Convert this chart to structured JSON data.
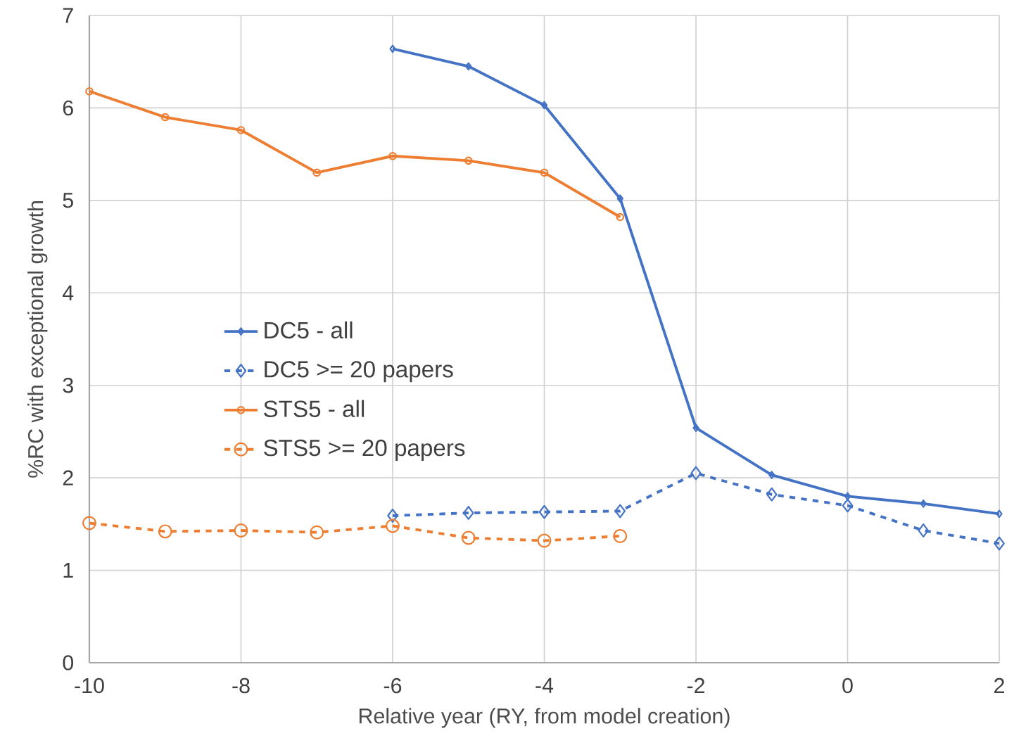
{
  "chart_data": {
    "type": "line",
    "xlabel": "Relative year (RY, from model creation)",
    "ylabel": "%RC with exceptional growth",
    "xlim": [
      -10,
      2
    ],
    "xticks": [
      -10,
      -8,
      -6,
      -4,
      -2,
      0,
      2
    ],
    "ylim": [
      0,
      7
    ],
    "yticks": [
      0,
      1,
      2,
      3,
      4,
      5,
      6,
      7
    ],
    "grid": true,
    "legend": "left",
    "series": [
      {
        "name": "DC5 - all",
        "color": "#4472c4",
        "marker": "diamond",
        "line_style": "solid",
        "x": [
          -6,
          -5,
          -4,
          -3,
          -2,
          -1,
          0,
          1,
          2
        ],
        "values": [
          6.64,
          6.45,
          6.03,
          5.02,
          2.54,
          2.03,
          1.8,
          1.72,
          1.61
        ]
      },
      {
        "name": "DC5 >= 20 papers",
        "color": "#4472c4",
        "marker": "diamond",
        "line_style": "dashed",
        "x": [
          -6,
          -5,
          -4,
          -3,
          -2,
          -1,
          0,
          1,
          2
        ],
        "values": [
          1.59,
          1.62,
          1.63,
          1.64,
          2.05,
          1.82,
          1.7,
          1.43,
          1.29
        ]
      },
      {
        "name": "STS5 - all",
        "color": "#ed7d31",
        "marker": "circle",
        "line_style": "solid",
        "x": [
          -10,
          -9,
          -8,
          -7,
          -6,
          -5,
          -4,
          -3
        ],
        "values": [
          6.18,
          5.9,
          5.76,
          5.3,
          5.48,
          5.43,
          5.3,
          4.82
        ]
      },
      {
        "name": "STS5 >= 20 papers",
        "color": "#ed7d31",
        "marker": "circle",
        "line_style": "dashed",
        "x": [
          -10,
          -9,
          -8,
          -7,
          -6,
          -5,
          -4,
          -3
        ],
        "values": [
          1.51,
          1.42,
          1.43,
          1.41,
          1.48,
          1.35,
          1.32,
          1.37
        ]
      }
    ]
  }
}
